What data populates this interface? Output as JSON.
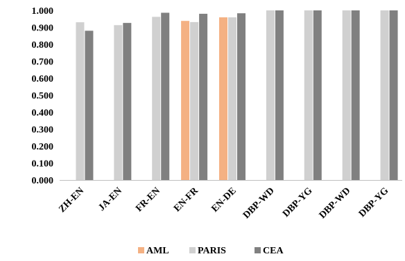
{
  "chart_data": {
    "type": "bar",
    "title": "",
    "xlabel": "",
    "ylabel": "",
    "ylim": [
      0,
      1.0
    ],
    "yticks": [
      "0.000",
      "0.100",
      "0.200",
      "0.300",
      "0.400",
      "0.500",
      "0.600",
      "0.700",
      "0.800",
      "0.900",
      "1.000"
    ],
    "grid": false,
    "legend_position": "bottom",
    "categories": [
      "ZH-EN",
      "JA-EN",
      "FR-EN",
      "EN-FR",
      "EN-DE",
      "DBP-WD",
      "DBP-YG",
      "DBP-WD",
      "DBP-YG"
    ],
    "series": [
      {
        "name": "AML",
        "color": "#F4B183",
        "values": [
          null,
          null,
          null,
          0.938,
          0.959,
          null,
          null,
          null,
          null
        ]
      },
      {
        "name": "PARIS",
        "color": "#D0D0D0",
        "values": [
          0.93,
          0.913,
          0.962,
          0.931,
          0.959,
          1.0,
          1.0,
          1.0,
          1.0
        ]
      },
      {
        "name": "CEA",
        "color": "#808080",
        "values": [
          0.88,
          0.926,
          0.986,
          0.98,
          0.983,
          1.0,
          1.0,
          1.0,
          1.0
        ]
      }
    ]
  }
}
